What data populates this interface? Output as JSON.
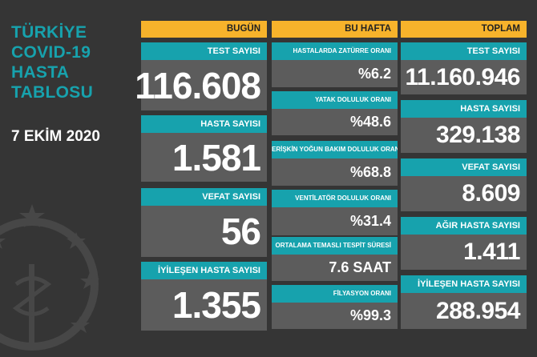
{
  "header": {
    "title_lines": [
      "TÜRKİYE",
      "COVID-19",
      "HASTA",
      "TABLOSU"
    ],
    "date": "7 EKİM 2020"
  },
  "today": {
    "heading": "BUGÜN",
    "items": [
      {
        "label": "TEST SAYISI",
        "value": "116.608"
      },
      {
        "label": "HASTA SAYISI",
        "value": "1.581"
      },
      {
        "label": "VEFAT SAYISI",
        "value": "56"
      },
      {
        "label": "İYİLEŞEN HASTA SAYISI",
        "value": "1.355"
      }
    ]
  },
  "this_week": {
    "heading": "BU HAFTA",
    "items": [
      {
        "label": "HASTALARDA ZATÜRRE ORANI",
        "value": "%6.2"
      },
      {
        "label": "YATAK DOLULUK ORANI",
        "value": "%48.6"
      },
      {
        "label": "ERİŞKİN YOĞUN BAKIM DOLULUK ORANI",
        "value": "%68.8"
      },
      {
        "label": "VENTİLATÖR DOLULUK ORANI",
        "value": "%31.4"
      },
      {
        "label": "ORTALAMA TEMASLI TESPİT SÜRESİ",
        "value": "7.6 SAAT"
      },
      {
        "label": "FİLYASYON ORANI",
        "value": "%99.3"
      }
    ]
  },
  "total": {
    "heading": "TOPLAM",
    "items": [
      {
        "label": "TEST SAYISI",
        "value": "11.160.946"
      },
      {
        "label": "HASTA SAYISI",
        "value": "329.138"
      },
      {
        "label": "VEFAT SAYISI",
        "value": "8.609"
      },
      {
        "label": "AĞIR HASTA SAYISI",
        "value": "1.411"
      },
      {
        "label": "İYİLEŞEN HASTA SAYISI",
        "value": "288.954"
      }
    ]
  },
  "colors": {
    "background": "#353535",
    "accent_teal": "#17a2ad",
    "header_yellow": "#f7b32b",
    "value_box": "#5c5c5c"
  },
  "icons": [
    "ministry-emblem-icon"
  ]
}
